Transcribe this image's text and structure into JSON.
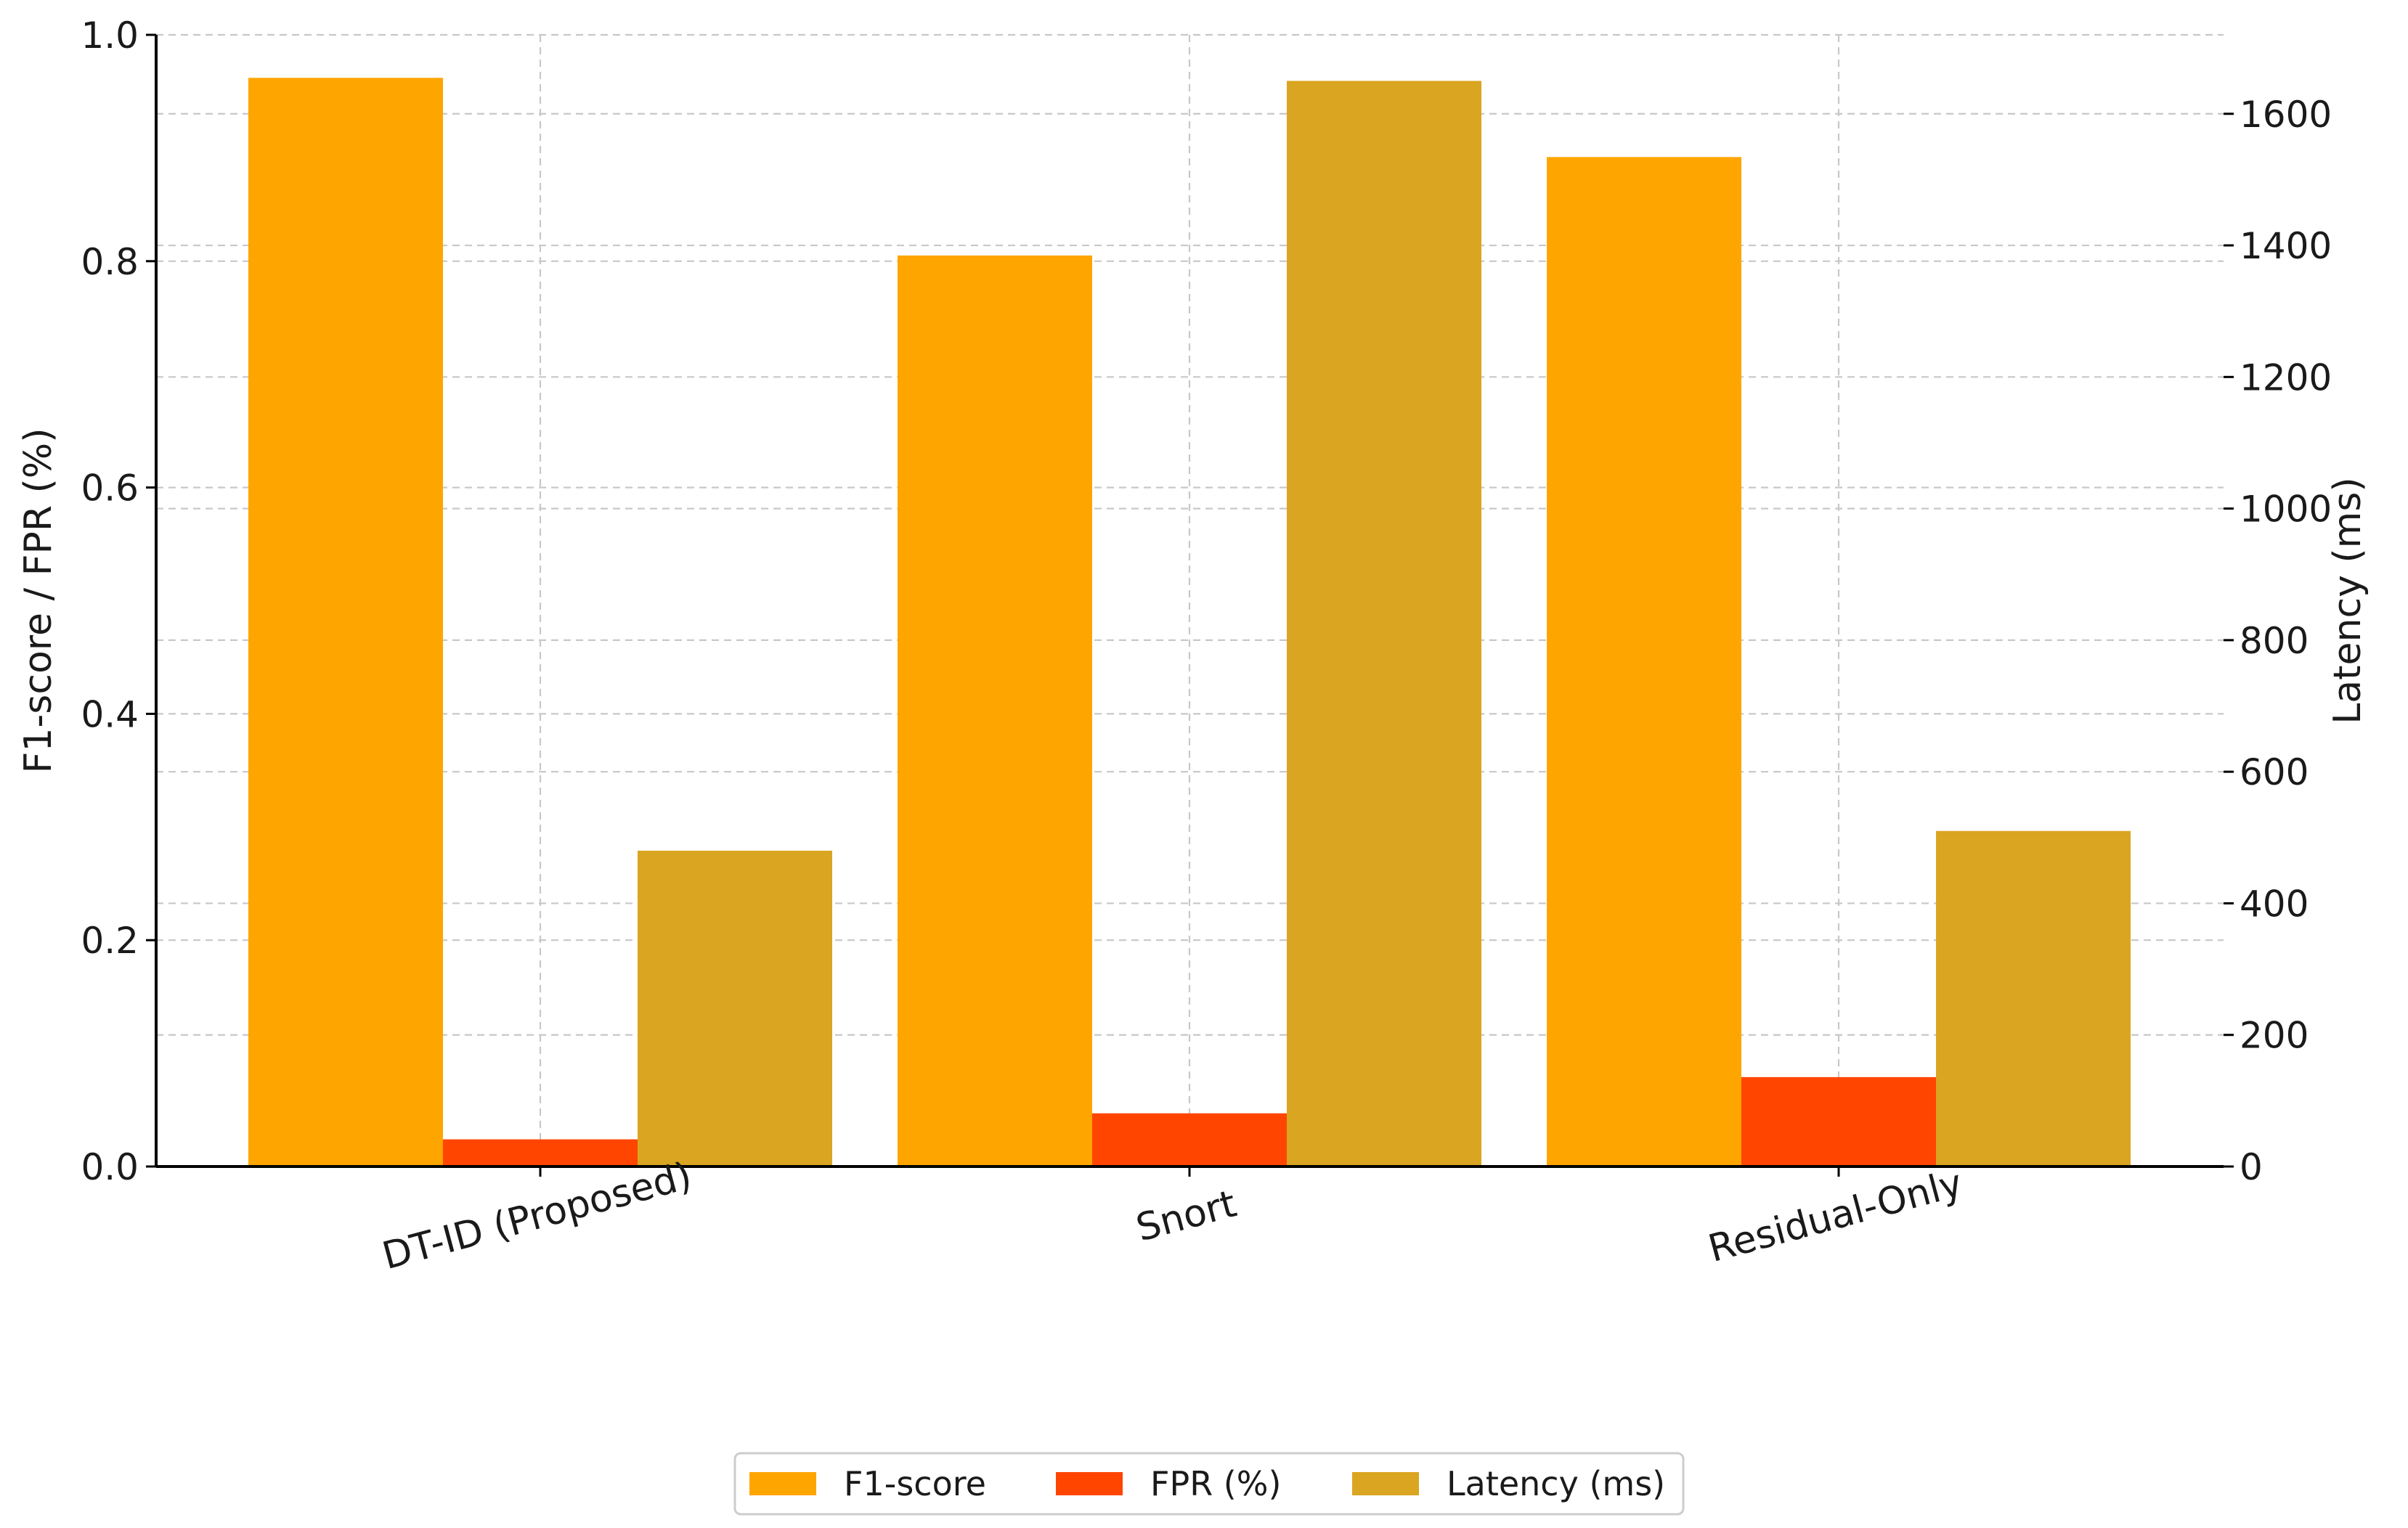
{
  "chart_data": {
    "type": "bar",
    "title": "",
    "xlabel": "",
    "ylabel": "F1-score / FPR (%)",
    "y2label": "Latency (ms)",
    "categories": [
      "DT-ID (Proposed)",
      "Snort",
      "Residual-Only"
    ],
    "ylim": [
      0,
      1.0
    ],
    "y2lim": [
      0,
      1720
    ],
    "yticks": [
      0.0,
      0.2,
      0.4,
      0.6,
      0.8,
      1.0
    ],
    "yticklabels": [
      "0.0",
      "0.2",
      "0.4",
      "0.6",
      "0.8",
      "1.0"
    ],
    "y2ticks": [
      0,
      200,
      400,
      600,
      800,
      1000,
      1200,
      1400,
      1600
    ],
    "y2ticklabels": [
      "0",
      "200",
      "400",
      "600",
      "800",
      "1000",
      "1200",
      "1400",
      "1600"
    ],
    "grid": true,
    "legend_position": "bottom-center",
    "series": [
      {
        "name": "F1-score",
        "axis": "left",
        "color": "#FFA500",
        "values": [
          0.962,
          0.805,
          0.892
        ]
      },
      {
        "name": "FPR (%)",
        "axis": "left",
        "color": "#FF4500",
        "values": [
          0.024,
          0.047,
          0.079
        ]
      },
      {
        "name": "Latency (ms)",
        "axis": "right",
        "color": "#DAA520",
        "values": [
          480,
          1650,
          510
        ]
      }
    ]
  }
}
